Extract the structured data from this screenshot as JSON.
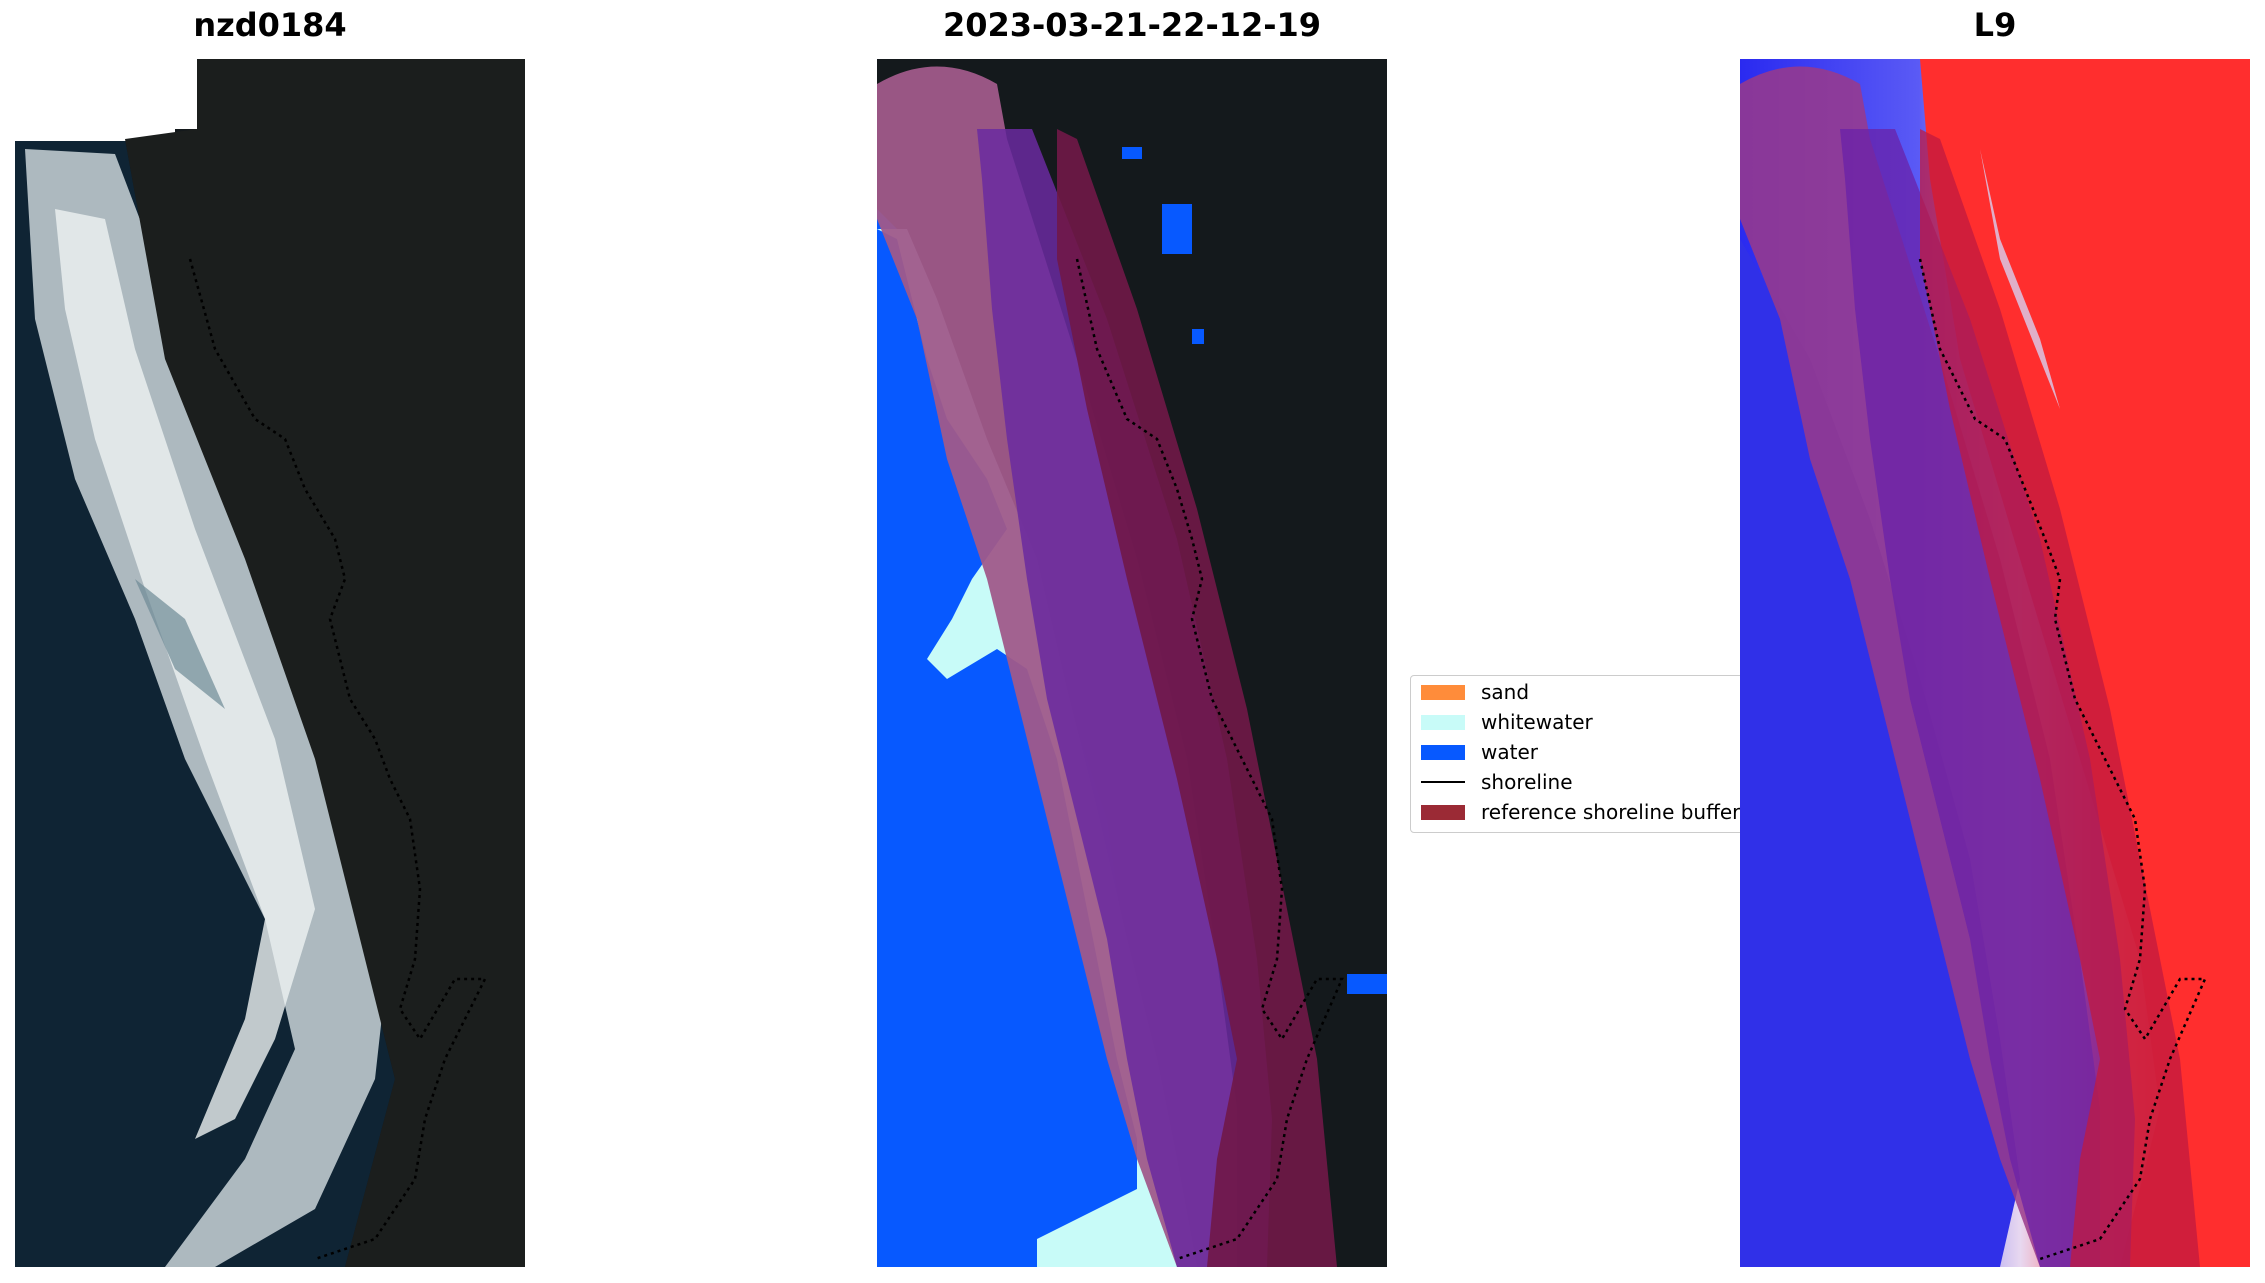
{
  "panels": [
    {
      "title": "nzd0184"
    },
    {
      "title": "2023-03-21-22-12-19"
    },
    {
      "title": "L9"
    }
  ],
  "legend": {
    "items": [
      {
        "label": "sand",
        "color": "#ff8c3a",
        "kind": "patch"
      },
      {
        "label": "whitewater",
        "color": "#c8fbf8",
        "kind": "patch"
      },
      {
        "label": "water",
        "color": "#0759ff",
        "kind": "patch"
      },
      {
        "label": "shoreline",
        "color": "#000000",
        "kind": "line"
      },
      {
        "label": "reference shoreline buffer",
        "color": "#9b2a35",
        "kind": "patch"
      }
    ]
  },
  "colors": {
    "background_dark": "#14191c",
    "buffer_overlay": "#8a1a4c",
    "water_index_low": "#2a2af0",
    "water_index_high": "#ff1c1c"
  }
}
